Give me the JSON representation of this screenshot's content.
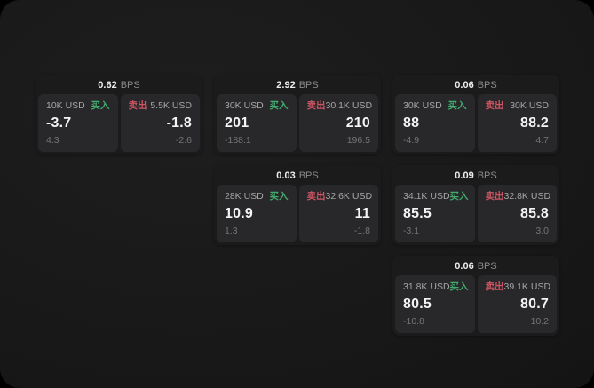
{
  "unit_label": "BPS",
  "buy_label": "买入",
  "sell_label": "卖出",
  "colors": {
    "buy": "#42ab6e",
    "sell": "#cd5564",
    "page_bg": "#181818",
    "card_bg": "#1b1b1c",
    "panel_bg": "#28282a"
  },
  "cards": [
    {
      "bps": "0.62",
      "buy": {
        "size": "10K USD",
        "price": "-3.7",
        "delta": "4.3"
      },
      "sell": {
        "size": "5.5K USD",
        "price": "-1.8",
        "delta": "-2.6"
      }
    },
    {
      "bps": "2.92",
      "buy": {
        "size": "30K USD",
        "price": "201",
        "delta": "-188.1"
      },
      "sell": {
        "size": "30.1K USD",
        "price": "210",
        "delta": "196.5"
      }
    },
    {
      "bps": "0.06",
      "buy": {
        "size": "30K USD",
        "price": "88",
        "delta": "-4.9"
      },
      "sell": {
        "size": "30K USD",
        "price": "88.2",
        "delta": "4.7"
      }
    },
    {
      "bps": "0.03",
      "buy": {
        "size": "28K USD",
        "price": "10.9",
        "delta": "1.3"
      },
      "sell": {
        "size": "32.6K USD",
        "price": "11",
        "delta": "-1.8"
      }
    },
    {
      "bps": "0.09",
      "buy": {
        "size": "34.1K USD",
        "price": "85.5",
        "delta": "-3.1"
      },
      "sell": {
        "size": "32.8K USD",
        "price": "85.8",
        "delta": "3.0"
      }
    },
    {
      "bps": "0.06",
      "buy": {
        "size": "31.8K USD",
        "price": "80.5",
        "delta": "-10.8"
      },
      "sell": {
        "size": "39.1K USD",
        "price": "80.7",
        "delta": "10.2"
      }
    }
  ]
}
